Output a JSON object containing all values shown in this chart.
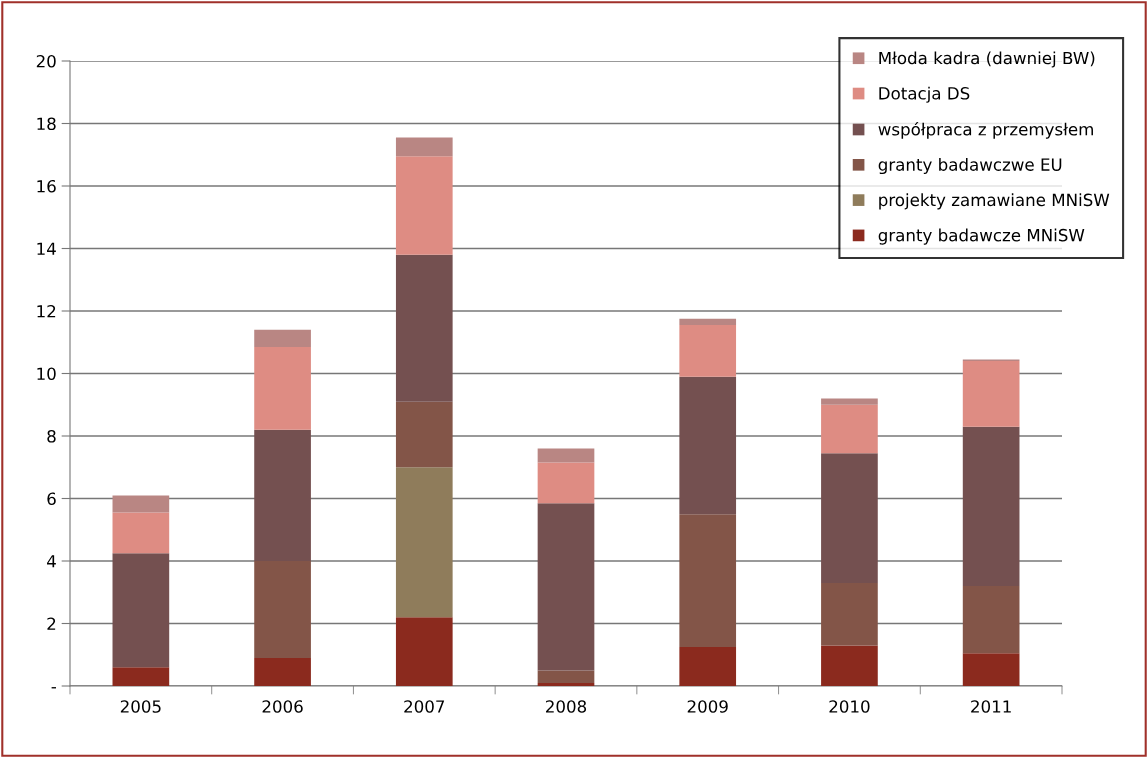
{
  "chart_data": {
    "type": "bar",
    "stacked": true,
    "categories": [
      "2005",
      "2006",
      "2007",
      "2008",
      "2009",
      "2010",
      "2011"
    ],
    "series": [
      {
        "name": "granty badawcze MNiSW",
        "color": "#8b2a1e",
        "values": [
          0.6,
          0.9,
          2.2,
          0.1,
          1.25,
          1.3,
          1.05
        ]
      },
      {
        "name": "projekty zamawiane MNiSW",
        "color": "#8f7c5b",
        "values": [
          0,
          0,
          4.8,
          0,
          0,
          0,
          0
        ]
      },
      {
        "name": "granty badawczwe EU",
        "color": "#835548",
        "values": [
          0,
          3.1,
          2.1,
          0.4,
          4.25,
          2.0,
          2.15
        ]
      },
      {
        "name": "współpraca z przemysłem",
        "color": "#745050",
        "values": [
          3.65,
          4.2,
          4.7,
          5.35,
          4.4,
          4.15,
          5.1
        ]
      },
      {
        "name": "Dotacja DS",
        "color": "#de8c83",
        "values": [
          1.3,
          2.65,
          3.15,
          1.3,
          1.65,
          1.55,
          2.1
        ]
      },
      {
        "name": "Młoda kadra (dawniej BW)",
        "color": "#b98683",
        "values": [
          0.55,
          0.55,
          0.6,
          0.45,
          0.2,
          0.2,
          0.05
        ]
      }
    ],
    "ylim": [
      0,
      20
    ],
    "yticks": [
      {
        "value": 0,
        "label": "-"
      },
      2,
      4,
      6,
      8,
      10,
      12,
      14,
      16,
      18,
      20
    ],
    "grid": "y",
    "legend": "top right"
  }
}
